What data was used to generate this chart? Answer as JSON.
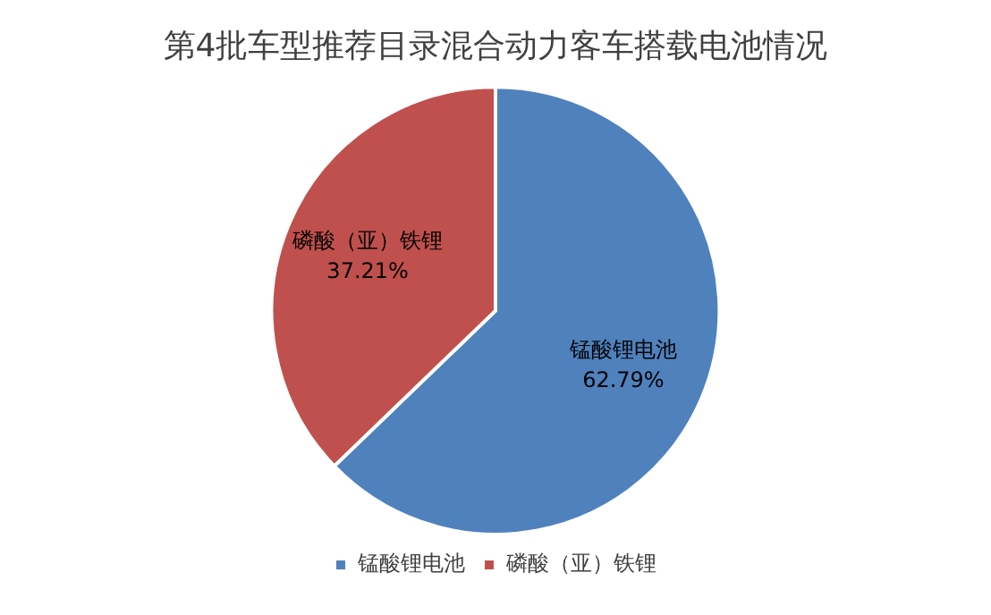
{
  "chart_data": {
    "type": "pie",
    "title": "第4批车型推荐目录混合动力客车搭载电池情况",
    "categories": [
      "锰酸锂电池",
      "磷酸（亚）铁锂"
    ],
    "values": [
      62.79,
      37.21
    ],
    "colors": [
      "#4f81bd",
      "#c0504d"
    ],
    "value_labels": [
      "62.79%",
      "37.21%"
    ],
    "legend": "bottom"
  }
}
